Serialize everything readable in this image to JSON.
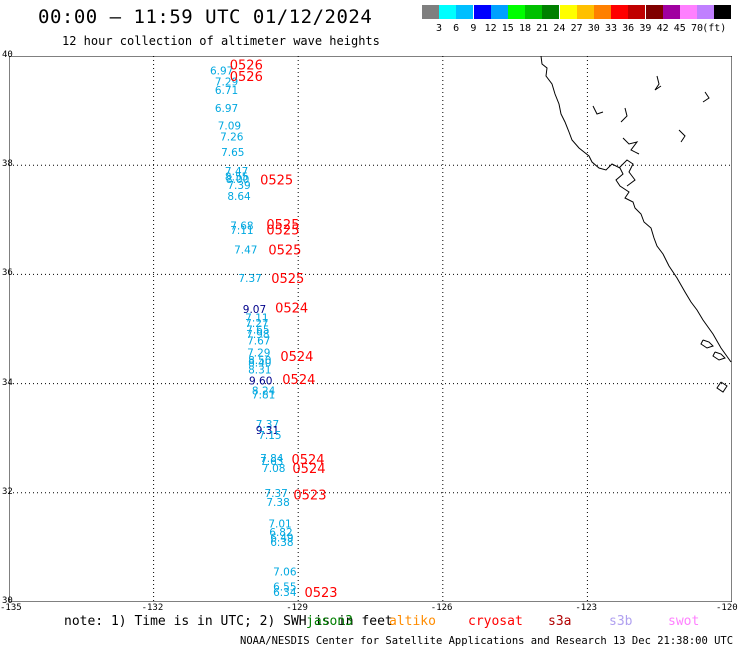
{
  "header": {
    "title": "00:00 – 11:59 UTC 01/12/2024",
    "subtitle": "12 hour collection of altimeter wave heights"
  },
  "legend": {
    "colors": [
      "#7f7f7f",
      "#00ffff",
      "#00bfff",
      "#0000ff",
      "#00a0ff",
      "#00ff00",
      "#00c000",
      "#008000",
      "#ffff00",
      "#ffc000",
      "#ff8000",
      "#ff0000",
      "#c00000",
      "#800000",
      "#a000a0",
      "#ff80ff",
      "#c080ff",
      "#000000"
    ],
    "labels": [
      "3",
      "6",
      "9",
      "12",
      "15",
      "18",
      "21",
      "24",
      "27",
      "30",
      "33",
      "36",
      "39",
      "42",
      "45",
      "70",
      "(ft)"
    ]
  },
  "axes": {
    "lat_labels": [
      "40",
      "38",
      "36",
      "34",
      "32",
      "30"
    ],
    "lon_labels": [
      "-135",
      "-132",
      "-129",
      "-126",
      "-123",
      "-120"
    ]
  },
  "observations": [
    {
      "v": "6.97",
      "lat": 39.73,
      "lon": -130.83,
      "c": "#00a8e0"
    },
    {
      "v": "7.29",
      "lat": 39.53,
      "lon": -130.73,
      "c": "#00a8e0"
    },
    {
      "v": "6.71",
      "lat": 39.38,
      "lon": -130.73,
      "c": "#00a8e0"
    },
    {
      "v": "6.97",
      "lat": 39.05,
      "lon": -130.73,
      "c": "#00a8e0"
    },
    {
      "v": "7.09",
      "lat": 38.73,
      "lon": -130.67,
      "c": "#00a8e0"
    },
    {
      "v": "7.26",
      "lat": 38.53,
      "lon": -130.62,
      "c": "#00a8e0"
    },
    {
      "v": "7.65",
      "lat": 38.24,
      "lon": -130.6,
      "c": "#00a8e0"
    },
    {
      "v": "7.47",
      "lat": 37.89,
      "lon": -130.52,
      "c": "#00a8e0"
    },
    {
      "v": "8.55",
      "lat": 37.79,
      "lon": -130.52,
      "c": "#00a8e0"
    },
    {
      "v": "8.00",
      "lat": 37.75,
      "lon": -130.5,
      "c": "#00a8e0"
    },
    {
      "v": "7.39",
      "lat": 37.64,
      "lon": -130.47,
      "c": "#00a8e0"
    },
    {
      "v": "8.64",
      "lat": 37.44,
      "lon": -130.47,
      "c": "#00a8e0"
    },
    {
      "v": "7.68",
      "lat": 36.9,
      "lon": -130.41,
      "c": "#00a8e0"
    },
    {
      "v": "7.11",
      "lat": 36.81,
      "lon": -130.41,
      "c": "#00a8e0"
    },
    {
      "v": "7.47",
      "lat": 36.46,
      "lon": -130.33,
      "c": "#00a8e0"
    },
    {
      "v": "7.37",
      "lat": 35.93,
      "lon": -130.24,
      "c": "#00a8e0"
    },
    {
      "v": "9.07",
      "lat": 35.37,
      "lon": -130.15,
      "c": "#00008b"
    },
    {
      "v": "7.11",
      "lat": 35.21,
      "lon": -130.1,
      "c": "#00a8e0"
    },
    {
      "v": "7.27",
      "lat": 35.11,
      "lon": -130.1,
      "c": "#00a8e0"
    },
    {
      "v": "7.65",
      "lat": 34.99,
      "lon": -130.08,
      "c": "#00a8e0"
    },
    {
      "v": "7.98",
      "lat": 34.91,
      "lon": -130.08,
      "c": "#00a8e0"
    },
    {
      "v": "7.67",
      "lat": 34.79,
      "lon": -130.06,
      "c": "#00a8e0"
    },
    {
      "v": "7.29",
      "lat": 34.57,
      "lon": -130.06,
      "c": "#00a8e0"
    },
    {
      "v": "8.50",
      "lat": 34.43,
      "lon": -130.04,
      "c": "#00a8e0"
    },
    {
      "v": "8.40",
      "lat": 34.39,
      "lon": -130.04,
      "c": "#00a8e0"
    },
    {
      "v": "8.31",
      "lat": 34.26,
      "lon": -130.04,
      "c": "#00a8e0"
    },
    {
      "v": "9.60",
      "lat": 34.06,
      "lon": -130.02,
      "c": "#00008b"
    },
    {
      "v": "8.24",
      "lat": 33.87,
      "lon": -129.96,
      "c": "#00a8e0"
    },
    {
      "v": "7.81",
      "lat": 33.8,
      "lon": -129.96,
      "c": "#00a8e0"
    },
    {
      "v": "7.37",
      "lat": 33.26,
      "lon": -129.88,
      "c": "#00a8e0"
    },
    {
      "v": "9.31",
      "lat": 33.15,
      "lon": -129.88,
      "c": "#00008b"
    },
    {
      "v": "7.15",
      "lat": 33.06,
      "lon": -129.83,
      "c": "#00a8e0"
    },
    {
      "v": "7.84",
      "lat": 32.64,
      "lon": -129.79,
      "c": "#00a8e0"
    },
    {
      "v": "7.63",
      "lat": 32.58,
      "lon": -129.79,
      "c": "#00a8e0"
    },
    {
      "v": "7.08",
      "lat": 32.45,
      "lon": -129.75,
      "c": "#00a8e0"
    },
    {
      "v": "7.37",
      "lat": 32.0,
      "lon": -129.7,
      "c": "#00a8e0"
    },
    {
      "v": "7.38",
      "lat": 31.83,
      "lon": -129.66,
      "c": "#00a8e0"
    },
    {
      "v": "7.01",
      "lat": 31.44,
      "lon": -129.62,
      "c": "#00a8e0"
    },
    {
      "v": "6.82",
      "lat": 31.28,
      "lon": -129.6,
      "c": "#00a8e0"
    },
    {
      "v": "6.49",
      "lat": 31.18,
      "lon": -129.58,
      "c": "#00a8e0"
    },
    {
      "v": "6.38",
      "lat": 31.1,
      "lon": -129.58,
      "c": "#00a8e0"
    },
    {
      "v": "7.06",
      "lat": 30.56,
      "lon": -129.52,
      "c": "#00a8e0"
    },
    {
      "v": "6.55",
      "lat": 30.28,
      "lon": -129.52,
      "c": "#00a8e0"
    },
    {
      "v": "6.34",
      "lat": 30.18,
      "lon": -129.52,
      "c": "#00a8e0"
    }
  ],
  "time_labels": [
    {
      "v": "0526",
      "lat": 39.84,
      "lon": -130.42
    },
    {
      "v": "0526",
      "lat": 39.63,
      "lon": -130.42
    },
    {
      "v": "0525",
      "lat": 37.74,
      "lon": -129.79
    },
    {
      "v": "0525",
      "lat": 36.92,
      "lon": -129.66
    },
    {
      "v": "0525",
      "lat": 36.82,
      "lon": -129.66
    },
    {
      "v": "0525",
      "lat": 36.46,
      "lon": -129.62
    },
    {
      "v": "0525",
      "lat": 35.93,
      "lon": -129.56
    },
    {
      "v": "0524",
      "lat": 35.39,
      "lon": -129.48
    },
    {
      "v": "0524",
      "lat": 34.51,
      "lon": -129.37
    },
    {
      "v": "0524",
      "lat": 34.08,
      "lon": -129.33
    },
    {
      "v": "0524",
      "lat": 32.62,
      "lon": -129.14
    },
    {
      "v": "0524",
      "lat": 32.45,
      "lon": -129.12
    },
    {
      "v": "0523",
      "lat": 31.97,
      "lon": -129.1
    },
    {
      "v": "0523",
      "lat": 30.18,
      "lon": -128.87
    }
  ],
  "notes": {
    "text": "note: 1) Time is in UTC; 2) SWH is in feet",
    "satellites": [
      {
        "name": "jason3",
        "color": "#008000"
      },
      {
        "name": "altiko",
        "color": "#ff8c00"
      },
      {
        "name": "cryosat",
        "color": "#ff0000"
      },
      {
        "name": "s3a",
        "color": "#b00000"
      },
      {
        "name": "s3b",
        "color": "#b0a0f0"
      },
      {
        "name": "swot",
        "color": "#ff80ff"
      }
    ]
  },
  "footer": "NOAA/NESDIS Center for Satellite Applications and Research   13 Dec 21:38:00 UTC 2024"
}
